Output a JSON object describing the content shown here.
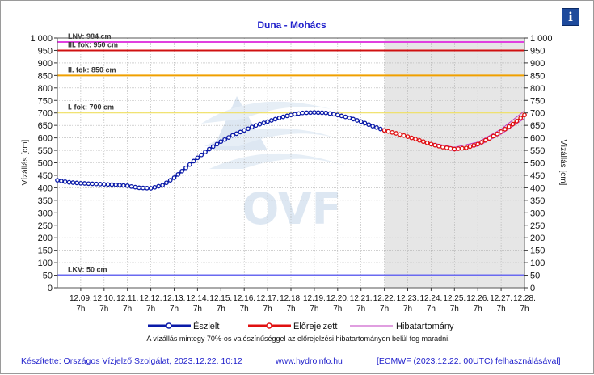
{
  "info_icon_glyph": "i",
  "colors": {
    "observed": "#0a1aa8",
    "forecast": "#e01010",
    "band": "#c03cc0",
    "title": "#2222cc",
    "footer": "#2222cc",
    "lnv": "#e040e0",
    "level3": "#d01010",
    "level2": "#f0a000",
    "level1": "#f0e060",
    "lkv": "#6a6af0",
    "forecast_bg": "#e6e6e6"
  },
  "chart_data": {
    "type": "line",
    "title": "Duna - Mohács",
    "ylabel": "Vízállás [cm]",
    "ylabel_right": "Vízállás [cm]",
    "ylim": [
      0,
      1000
    ],
    "yticks": [
      "0",
      "50",
      "100",
      "150",
      "200",
      "250",
      "300",
      "350",
      "400",
      "450",
      "500",
      "550",
      "600",
      "650",
      "700",
      "750",
      "800",
      "850",
      "900",
      "950",
      "1 000"
    ],
    "xlim": [
      "12.08. 7h",
      "12.28. 7h"
    ],
    "xticks": [
      {
        "d": "12.09.",
        "h": "7h"
      },
      {
        "d": "12.10.",
        "h": "7h"
      },
      {
        "d": "12.11.",
        "h": "7h"
      },
      {
        "d": "12.12.",
        "h": "7h"
      },
      {
        "d": "12.13.",
        "h": "7h"
      },
      {
        "d": "12.14.",
        "h": "7h"
      },
      {
        "d": "12.15.",
        "h": "7h"
      },
      {
        "d": "12.16.",
        "h": "7h"
      },
      {
        "d": "12.17.",
        "h": "7h"
      },
      {
        "d": "12.18.",
        "h": "7h"
      },
      {
        "d": "12.19.",
        "h": "7h"
      },
      {
        "d": "12.20.",
        "h": "7h"
      },
      {
        "d": "12.21.",
        "h": "7h"
      },
      {
        "d": "12.22.",
        "h": "7h"
      },
      {
        "d": "12.23.",
        "h": "7h"
      },
      {
        "d": "12.24.",
        "h": "7h"
      },
      {
        "d": "12.25.",
        "h": "7h"
      },
      {
        "d": "12.26.",
        "h": "7h"
      },
      {
        "d": "12.27.",
        "h": "7h"
      },
      {
        "d": "12.28.",
        "h": "7h"
      }
    ],
    "forecast_start": "12.22. 7h",
    "grid": true,
    "legend_position": "bottom",
    "reference_lines": [
      {
        "label": "LNV: 984 cm",
        "value": 984,
        "color_key": "lnv"
      },
      {
        "label": "III. fok: 950 cm",
        "value": 950,
        "color_key": "level3"
      },
      {
        "label": "II. fok: 850 cm",
        "value": 850,
        "color_key": "level2"
      },
      {
        "label": "I. fok: 700 cm",
        "value": 700,
        "color_key": "level1"
      },
      {
        "label": "LKV: 50 cm",
        "value": 50,
        "color_key": "lkv"
      }
    ],
    "series": [
      {
        "name": "Észlelt",
        "x": [
          "12.08. 7h",
          "12.08. 19h",
          "12.09. 7h",
          "12.09. 19h",
          "12.10. 7h",
          "12.10. 19h",
          "12.11. 7h",
          "12.11. 19h",
          "12.12. 7h",
          "12.12. 19h",
          "12.13. 7h",
          "12.13. 19h",
          "12.14. 7h",
          "12.14. 19h",
          "12.15. 7h",
          "12.15. 19h",
          "12.16. 7h",
          "12.16. 19h",
          "12.17. 7h",
          "12.17. 19h",
          "12.18. 7h",
          "12.18. 19h",
          "12.19. 7h",
          "12.19. 19h",
          "12.20. 7h",
          "12.20. 19h",
          "12.21. 7h",
          "12.21. 19h",
          "12.22. 7h"
        ],
        "values": [
          430,
          422,
          418,
          416,
          414,
          412,
          408,
          400,
          398,
          410,
          440,
          480,
          520,
          555,
          585,
          610,
          630,
          650,
          665,
          680,
          692,
          700,
          702,
          700,
          692,
          680,
          665,
          647,
          630
        ]
      },
      {
        "name": "Előrejelzett",
        "x": [
          "12.22. 7h",
          "12.22. 19h",
          "12.23. 7h",
          "12.23. 19h",
          "12.24. 7h",
          "12.24. 19h",
          "12.25. 7h",
          "12.25. 19h",
          "12.26. 7h",
          "12.26. 19h",
          "12.27. 7h",
          "12.27. 19h",
          "12.28. 7h"
        ],
        "values": [
          630,
          618,
          605,
          590,
          575,
          563,
          555,
          560,
          575,
          598,
          625,
          655,
          692
        ]
      },
      {
        "name": "Hibatartomány",
        "x": [
          "12.22. 7h",
          "12.23. 7h",
          "12.24. 7h",
          "12.25. 7h",
          "12.26. 7h",
          "12.27. 7h",
          "12.28. 7h"
        ],
        "upper": [
          630,
          608,
          580,
          562,
          583,
          635,
          708
        ],
        "lower": [
          630,
          602,
          570,
          548,
          567,
          615,
          678
        ]
      }
    ],
    "note": "A vízállás mintegy 70%-os valószínűséggel az előrejelzési hibatartományon belül fog maradni.",
    "watermark": "OVF"
  },
  "footer": {
    "author": "Készítette: Országos Vízjelző Szolgálat, 2023.12.22. 10:12",
    "url": "www.hydroinfo.hu",
    "source": "[ECMWF (2023.12.22. 00UTC) felhasználásával]"
  }
}
